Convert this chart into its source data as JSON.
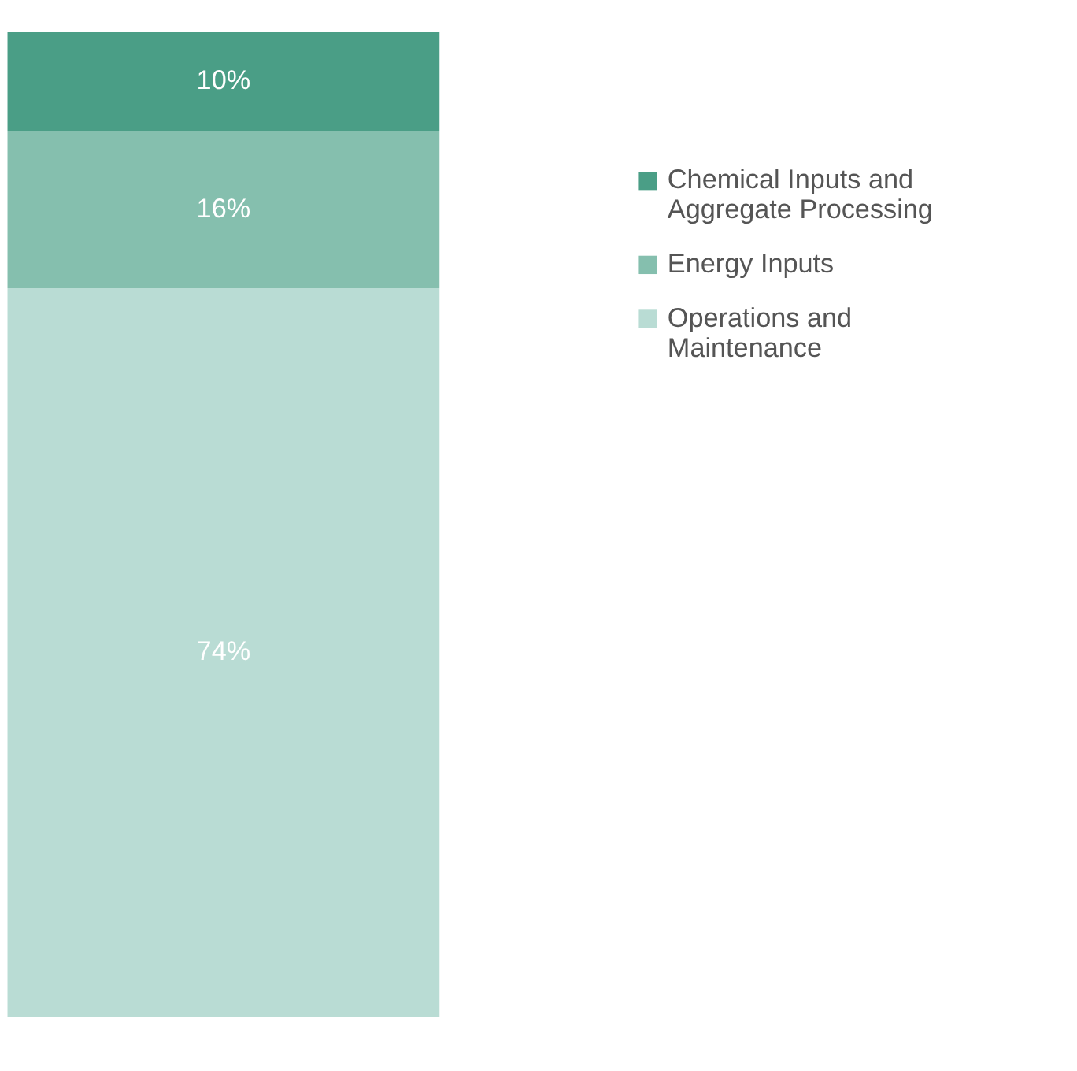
{
  "chart_data": {
    "type": "bar",
    "stacked": true,
    "categories": [
      null
    ],
    "series": [
      {
        "name": "Operations and Maintenance",
        "color": "#b9dcd4",
        "values": [
          74
        ],
        "value_labels": [
          "74%"
        ]
      },
      {
        "name": "Energy Inputs",
        "color": "#85bfae",
        "values": [
          16
        ],
        "value_labels": [
          "16%"
        ]
      },
      {
        "name": "Chemical Inputs and Aggregate Processing",
        "color": "#4a9e86",
        "values": [
          10
        ],
        "value_labels": [
          "10%"
        ]
      }
    ],
    "legend": "right"
  }
}
